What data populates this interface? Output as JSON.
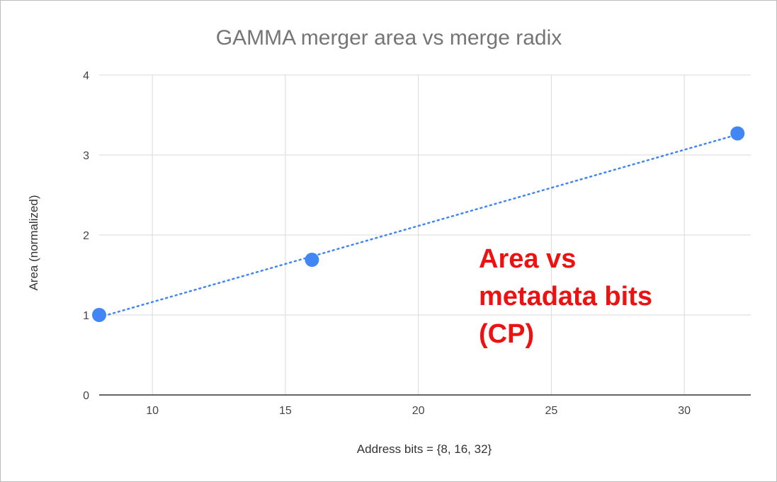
{
  "chart_data": {
    "type": "scatter",
    "title": "GAMMA merger area vs merge radix",
    "xlabel": "Address bits = {8, 16, 32}",
    "ylabel": "Area (normalized)",
    "xlim": [
      8,
      32.5
    ],
    "ylim": [
      0,
      4
    ],
    "x_ticks": [
      "10",
      "15",
      "20",
      "25",
      "30"
    ],
    "y_ticks": [
      "0",
      "1",
      "2",
      "3",
      "4"
    ],
    "grid": true,
    "legend": "none",
    "trendline": "dotted linear",
    "series": [
      {
        "x": [
          8,
          16,
          32
        ],
        "y": [
          1.0,
          1.69,
          3.27
        ]
      }
    ],
    "annotation": [
      "Area vs",
      "metadata bits",
      "(CP)"
    ]
  },
  "colors": {
    "series": "#4285f4",
    "grid": "#d9d9d9",
    "axis": "#333333",
    "title": "#757575",
    "annotation": "#ee1111"
  }
}
